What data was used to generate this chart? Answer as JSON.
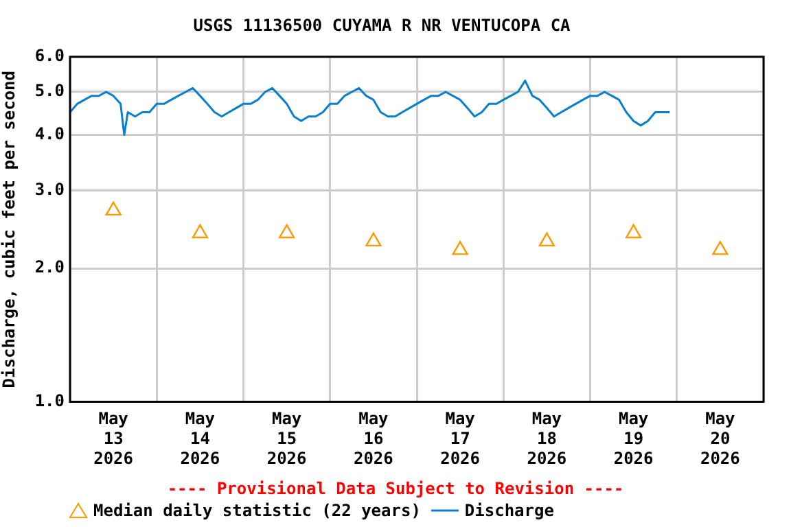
{
  "chart_data": {
    "type": "line",
    "title": "USGS 11136500 CUYAMA R NR VENTUCOPA CA",
    "ylabel": "Discharge, cubic feet per second",
    "log": "y",
    "grid": true,
    "legend": "bottom",
    "xlim": [
      "2026-05-13T00:00",
      "2026-05-21T00:00"
    ],
    "xticks": [
      {
        "value": "2026-05-13T00:00",
        "label": null
      },
      {
        "value": "2026-05-13T12:00",
        "label": "May 13 2026"
      },
      {
        "value": "2026-05-14T00:00",
        "label": null
      },
      {
        "value": "2026-05-14T12:00",
        "label": "May 14 2026"
      },
      {
        "value": "2026-05-15T00:00",
        "label": null
      },
      {
        "value": "2026-05-15T12:00",
        "label": "May 15 2026"
      },
      {
        "value": "2026-05-16T00:00",
        "label": null
      },
      {
        "value": "2026-05-16T12:00",
        "label": "May 16 2026"
      },
      {
        "value": "2026-05-17T00:00",
        "label": null
      },
      {
        "value": "2026-05-17T12:00",
        "label": "May 17 2026"
      },
      {
        "value": "2026-05-18T00:00",
        "label": null
      },
      {
        "value": "2026-05-18T12:00",
        "label": "May 18 2026"
      },
      {
        "value": "2026-05-19T00:00",
        "label": null
      },
      {
        "value": "2026-05-19T12:00",
        "label": "May 19 2026"
      },
      {
        "value": "2026-05-20T00:00",
        "label": null
      },
      {
        "value": "2026-05-20T12:00",
        "label": "May 20 2026"
      },
      {
        "value": "2026-05-21T00:00",
        "label": null
      }
    ],
    "ylim": [
      1,
      6
    ],
    "yticks": [
      {
        "value": 1,
        "label": "1.0"
      },
      {
        "value": 2,
        "label": "2.0"
      },
      {
        "value": 3,
        "label": "3.0"
      },
      {
        "value": 4,
        "label": "4.0"
      },
      {
        "value": 5,
        "label": "5.0"
      },
      {
        "value": 6,
        "label": "6.0"
      }
    ],
    "annotations": [
      "---- Provisional Data Subject to Revision ----"
    ],
    "series": [
      {
        "name": "Median daily statistic (22 years)",
        "type": "scatter",
        "marker": "triangle",
        "color": "#ff9900",
        "x": [
          "2026-05-13T12:00",
          "2026-05-14T12:00",
          "2026-05-15T12:00",
          "2026-05-16T12:00",
          "2026-05-17T12:00",
          "2026-05-18T12:00",
          "2026-05-19T12:00",
          "2026-05-20T12:00"
        ],
        "values": [
          2.7,
          2.4,
          2.4,
          2.3,
          2.2,
          2.3,
          2.4,
          2.2
        ]
      },
      {
        "name": "Discharge",
        "color": "#0a7fcc",
        "x": [
          "2026-05-13T00:00",
          "2026-05-13T02:00",
          "2026-05-13T04:00",
          "2026-05-13T06:00",
          "2026-05-13T08:00",
          "2026-05-13T10:00",
          "2026-05-13T12:00",
          "2026-05-13T14:00",
          "2026-05-13T15:00",
          "2026-05-13T16:00",
          "2026-05-13T18:00",
          "2026-05-13T20:00",
          "2026-05-13T22:00",
          "2026-05-14T00:00",
          "2026-05-14T02:00",
          "2026-05-14T04:00",
          "2026-05-14T06:00",
          "2026-05-14T08:00",
          "2026-05-14T10:00",
          "2026-05-14T12:00",
          "2026-05-14T14:00",
          "2026-05-14T16:00",
          "2026-05-14T18:00",
          "2026-05-14T20:00",
          "2026-05-14T22:00",
          "2026-05-15T00:00",
          "2026-05-15T02:00",
          "2026-05-15T04:00",
          "2026-05-15T06:00",
          "2026-05-15T08:00",
          "2026-05-15T10:00",
          "2026-05-15T12:00",
          "2026-05-15T14:00",
          "2026-05-15T16:00",
          "2026-05-15T18:00",
          "2026-05-15T20:00",
          "2026-05-15T22:00",
          "2026-05-16T00:00",
          "2026-05-16T02:00",
          "2026-05-16T04:00",
          "2026-05-16T06:00",
          "2026-05-16T08:00",
          "2026-05-16T10:00",
          "2026-05-16T12:00",
          "2026-05-16T14:00",
          "2026-05-16T16:00",
          "2026-05-16T18:00",
          "2026-05-16T20:00",
          "2026-05-16T22:00",
          "2026-05-17T00:00",
          "2026-05-17T02:00",
          "2026-05-17T04:00",
          "2026-05-17T06:00",
          "2026-05-17T08:00",
          "2026-05-17T10:00",
          "2026-05-17T12:00",
          "2026-05-17T14:00",
          "2026-05-17T16:00",
          "2026-05-17T18:00",
          "2026-05-17T20:00",
          "2026-05-17T22:00",
          "2026-05-18T00:00",
          "2026-05-18T02:00",
          "2026-05-18T04:00",
          "2026-05-18T06:00",
          "2026-05-18T08:00",
          "2026-05-18T10:00",
          "2026-05-18T12:00",
          "2026-05-18T14:00",
          "2026-05-18T16:00",
          "2026-05-18T18:00",
          "2026-05-18T20:00",
          "2026-05-18T22:00",
          "2026-05-19T00:00",
          "2026-05-19T02:00",
          "2026-05-19T04:00",
          "2026-05-19T06:00",
          "2026-05-19T08:00",
          "2026-05-19T10:00",
          "2026-05-19T12:00",
          "2026-05-19T14:00",
          "2026-05-19T16:00",
          "2026-05-19T18:00",
          "2026-05-19T20:00",
          "2026-05-19T22:00"
        ],
        "values": [
          4.5,
          4.7,
          4.8,
          4.9,
          4.9,
          5.0,
          4.9,
          4.7,
          4.0,
          4.5,
          4.4,
          4.5,
          4.5,
          4.7,
          4.7,
          4.8,
          4.9,
          5.0,
          5.1,
          4.9,
          4.7,
          4.5,
          4.4,
          4.5,
          4.6,
          4.7,
          4.7,
          4.8,
          5.0,
          5.1,
          4.9,
          4.7,
          4.4,
          4.3,
          4.4,
          4.4,
          4.5,
          4.7,
          4.7,
          4.9,
          5.0,
          5.1,
          4.9,
          4.8,
          4.5,
          4.4,
          4.4,
          4.5,
          4.6,
          4.7,
          4.8,
          4.9,
          4.9,
          5.0,
          4.9,
          4.8,
          4.6,
          4.4,
          4.5,
          4.7,
          4.7,
          4.8,
          4.9,
          5.0,
          5.3,
          4.9,
          4.8,
          4.6,
          4.4,
          4.5,
          4.6,
          4.7,
          4.8,
          4.9,
          4.9,
          5.0,
          4.9,
          4.8,
          4.5,
          4.3,
          4.2,
          4.3,
          4.5,
          4.5,
          4.5
        ]
      }
    ]
  }
}
